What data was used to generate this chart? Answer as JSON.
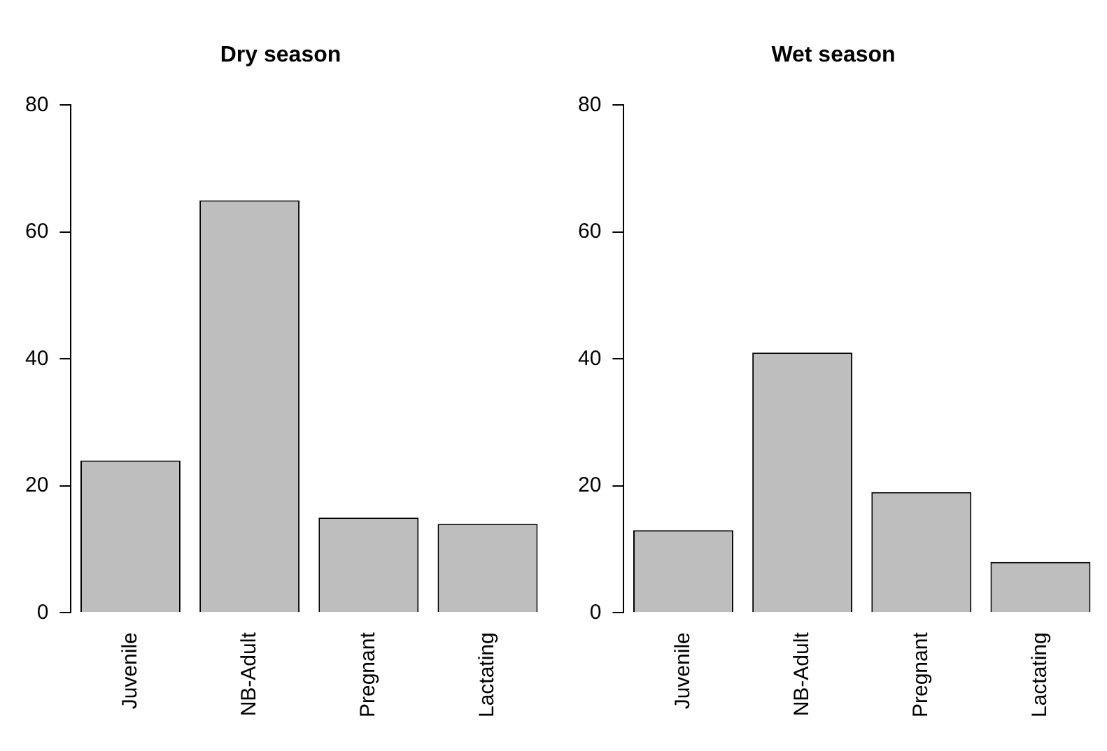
{
  "chart_data": [
    {
      "type": "bar",
      "title": "Dry season",
      "categories": [
        "Juvenile",
        "NB-Adult",
        "Pregnant",
        "Lactating"
      ],
      "values": [
        24,
        65,
        15,
        14
      ],
      "color": "#bebebe",
      "ylim": [
        0,
        80
      ],
      "yticks": [
        0,
        20,
        40,
        60,
        80
      ],
      "grid": false,
      "legend": false
    },
    {
      "type": "bar",
      "title": "Wet season",
      "categories": [
        "Juvenile",
        "NB-Adult",
        "Pregnant",
        "Lactating"
      ],
      "values": [
        13,
        41,
        19,
        8
      ],
      "color": "#bebebe",
      "ylim": [
        0,
        80
      ],
      "yticks": [
        0,
        20,
        40,
        60,
        80
      ],
      "grid": false,
      "legend": false
    }
  ]
}
